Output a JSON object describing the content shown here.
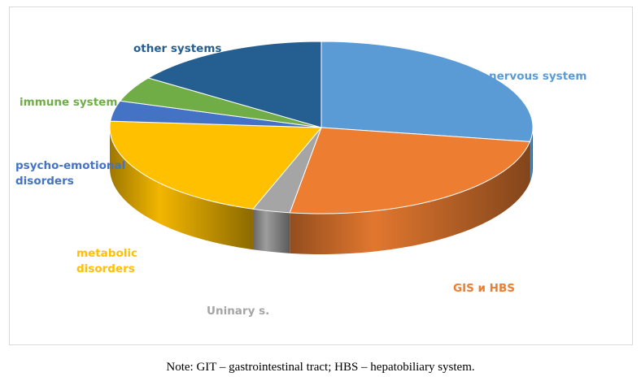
{
  "chart_data": {
    "type": "pie",
    "slices": [
      {
        "label": "nervous system",
        "value": 29,
        "color": "#5b9bd5"
      },
      {
        "label": "GIS и HBS",
        "value": 26,
        "color": "#ed7d31"
      },
      {
        "label": "Uninary s.",
        "value": 3,
        "color": "#a5a5a5"
      },
      {
        "label": "metabolic\ndisorders",
        "value": 22,
        "color": "#ffc000"
      },
      {
        "label": "psycho-emotional\ndisorders",
        "value": 4,
        "color": "#4472c4"
      },
      {
        "label": "immune system",
        "value": 5,
        "color": "#70ad47"
      },
      {
        "label": "other systems",
        "value": 16,
        "color": "#255e91"
      }
    ],
    "title": "",
    "legend": "none"
  },
  "note": "Note: GIT – gastrointestinal tract; HBS – hepatobiliary system."
}
